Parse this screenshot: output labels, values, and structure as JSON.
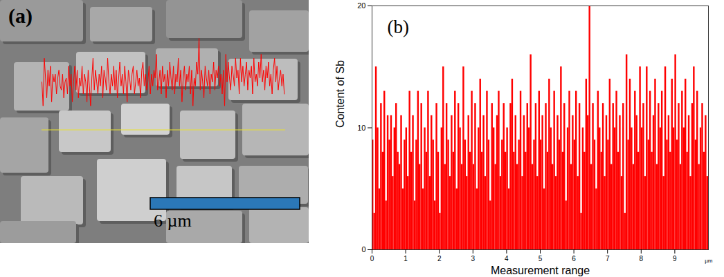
{
  "image_panel": {
    "label": "(a)",
    "scale_bar_label": "6 µm"
  },
  "chart_data": {
    "type": "bar",
    "panel_label": "(b)",
    "x_label": "Measurement range",
    "x_unit_label": "µm",
    "y_label": "Content of Sb",
    "color": "#ff0000",
    "x": [
      0,
      0.05,
      0.1,
      0.15,
      0.2,
      0.25,
      0.3,
      0.35,
      0.4,
      0.45,
      0.5,
      0.55,
      0.6,
      0.65,
      0.7,
      0.75,
      0.8,
      0.85,
      0.9,
      0.95,
      1,
      1.05,
      1.1,
      1.15,
      1.2,
      1.25,
      1.3,
      1.35,
      1.4,
      1.45,
      1.5,
      1.55,
      1.6,
      1.65,
      1.7,
      1.75,
      1.8,
      1.85,
      1.9,
      1.95,
      2,
      2.05,
      2.1,
      2.15,
      2.2,
      2.25,
      2.3,
      2.35,
      2.4,
      2.45,
      2.5,
      2.55,
      2.6,
      2.65,
      2.7,
      2.75,
      2.8,
      2.85,
      2.9,
      2.95,
      3,
      3.05,
      3.1,
      3.15,
      3.2,
      3.25,
      3.3,
      3.35,
      3.4,
      3.45,
      3.5,
      3.55,
      3.6,
      3.65,
      3.7,
      3.75,
      3.8,
      3.85,
      3.9,
      3.95,
      4,
      4.05,
      4.1,
      4.15,
      4.2,
      4.25,
      4.3,
      4.35,
      4.4,
      4.45,
      4.5,
      4.55,
      4.6,
      4.65,
      4.7,
      4.75,
      4.8,
      4.85,
      4.9,
      4.95,
      5,
      5.05,
      5.1,
      5.15,
      5.2,
      5.25,
      5.3,
      5.35,
      5.4,
      5.45,
      5.5,
      5.55,
      5.6,
      5.65,
      5.7,
      5.75,
      5.8,
      5.85,
      5.9,
      5.95,
      6,
      6.05,
      6.1,
      6.15,
      6.2,
      6.25,
      6.3,
      6.35,
      6.4,
      6.45,
      6.5,
      6.55,
      6.6,
      6.65,
      6.7,
      6.75,
      6.8,
      6.85,
      6.9,
      6.95,
      7,
      7.05,
      7.1,
      7.15,
      7.2,
      7.25,
      7.3,
      7.35,
      7.4,
      7.45,
      7.5,
      7.55,
      7.6,
      7.65,
      7.7,
      7.75,
      7.8,
      7.85,
      7.9,
      7.95,
      8,
      8.05,
      8.1,
      8.15,
      8.2,
      8.25,
      8.3,
      8.35,
      8.4,
      8.45,
      8.5,
      8.55,
      8.6,
      8.65,
      8.7,
      8.75,
      8.8,
      8.85,
      8.9,
      8.95,
      9,
      9.05,
      9.1,
      9.15,
      9.2,
      9.25,
      9.3,
      9.35,
      9.4,
      9.45,
      9.5,
      9.55,
      9.6,
      9.65,
      9.7,
      9.75,
      9.8,
      9.85,
      9.9,
      9.95
    ],
    "values": [
      9,
      3,
      15,
      10,
      5,
      12,
      8,
      13,
      4,
      11,
      9,
      11,
      6,
      10,
      12,
      8,
      7,
      11,
      5,
      9,
      10,
      6,
      13,
      8,
      11,
      4,
      9,
      13,
      7,
      12,
      5,
      10,
      8,
      13,
      6,
      11,
      9,
      4,
      12,
      8,
      3,
      10,
      15,
      7,
      12,
      9,
      6,
      11,
      8,
      13,
      5,
      12,
      10,
      7,
      15,
      9,
      6,
      11,
      8,
      13,
      7,
      12,
      5,
      10,
      14,
      8,
      11,
      6,
      13,
      9,
      4,
      12,
      10,
      7,
      11,
      13,
      6,
      9,
      12,
      8,
      10,
      5,
      12,
      14,
      8,
      11,
      7,
      9,
      13,
      6,
      11,
      8,
      12,
      10,
      16,
      7,
      9,
      12,
      6,
      13,
      9,
      11,
      5,
      12,
      8,
      14,
      10,
      7,
      13,
      6,
      11,
      9,
      15,
      8,
      12,
      4,
      10,
      13,
      7,
      11,
      9,
      13,
      6,
      12,
      3,
      10,
      8,
      14,
      11,
      20,
      7,
      12,
      9,
      5,
      13,
      10,
      8,
      12,
      6,
      11,
      9,
      14,
      7,
      12,
      10,
      13,
      8,
      11,
      6,
      12,
      3,
      16,
      9,
      14,
      10,
      7,
      13,
      11,
      8,
      15,
      10,
      12,
      6,
      15,
      9,
      13,
      8,
      11,
      14,
      7,
      12,
      10,
      13,
      6,
      15,
      9,
      11,
      8,
      14,
      10,
      16,
      9,
      12,
      7,
      13,
      10,
      14,
      8,
      11,
      6,
      12,
      15,
      9,
      13,
      7,
      10,
      12,
      8,
      11,
      6
    ],
    "xlim": [
      0,
      10
    ],
    "xticks": [
      0,
      1,
      2,
      3,
      4,
      5,
      6,
      7,
      8,
      9
    ],
    "ylim": [
      0,
      20
    ],
    "yticks": [
      0,
      10,
      20
    ]
  }
}
